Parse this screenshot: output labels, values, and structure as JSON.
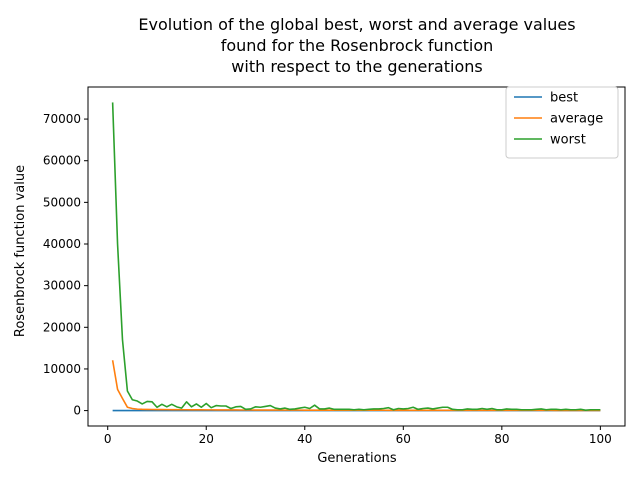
{
  "chart_data": {
    "type": "line",
    "title": [
      "Evolution of the global best, worst and average values",
      "found for the Rosenbrock function",
      "with respect to the generations"
    ],
    "xlabel": "Generations",
    "ylabel": "Rosenbrock function value",
    "xlim": [
      -4,
      105
    ],
    "ylim": [
      -3700,
      77700
    ],
    "xticks": [
      0,
      20,
      40,
      60,
      80,
      100
    ],
    "xtick_labels": [
      "0",
      "20",
      "40",
      "60",
      "80",
      "100"
    ],
    "yticks": [
      0,
      10000,
      20000,
      30000,
      40000,
      50000,
      60000,
      70000
    ],
    "ytick_labels": [
      "0",
      "10000",
      "20000",
      "30000",
      "40000",
      "50000",
      "60000",
      "70000"
    ],
    "grid": false,
    "legend_position": "top-right",
    "x": [
      1,
      2,
      3,
      4,
      5,
      6,
      7,
      8,
      9,
      10,
      11,
      12,
      13,
      14,
      15,
      16,
      17,
      18,
      19,
      20,
      21,
      22,
      23,
      24,
      25,
      26,
      27,
      28,
      29,
      30,
      31,
      32,
      33,
      34,
      35,
      36,
      37,
      38,
      39,
      40,
      41,
      42,
      43,
      44,
      45,
      46,
      47,
      48,
      49,
      50,
      51,
      52,
      53,
      54,
      55,
      56,
      57,
      58,
      59,
      60,
      61,
      62,
      63,
      64,
      65,
      66,
      67,
      68,
      69,
      70,
      71,
      72,
      73,
      74,
      75,
      76,
      77,
      78,
      79,
      80,
      81,
      82,
      83,
      84,
      85,
      86,
      87,
      88,
      89,
      90,
      91,
      92,
      93,
      94,
      95,
      96,
      97,
      98,
      99,
      100
    ],
    "series": [
      {
        "name": "best",
        "color": "#1f77b4",
        "values": [
          8,
          6,
          5,
          4,
          4,
          3,
          3,
          3,
          3,
          2,
          2,
          2,
          2,
          2,
          2,
          2,
          2,
          2,
          2,
          2,
          2,
          2,
          2,
          2,
          2,
          2,
          2,
          2,
          2,
          2,
          2,
          2,
          2,
          2,
          2,
          2,
          2,
          2,
          2,
          2,
          2,
          2,
          2,
          2,
          2,
          2,
          2,
          2,
          2,
          2,
          2,
          2,
          2,
          2,
          2,
          2,
          2,
          2,
          2,
          2,
          2,
          2,
          2,
          2,
          2,
          2,
          2,
          2,
          2,
          2,
          2,
          2,
          2,
          2,
          2,
          2,
          2,
          2,
          2,
          2,
          2,
          2,
          2,
          2,
          2,
          2,
          2,
          2,
          2,
          2,
          2,
          2,
          2,
          2,
          2,
          2,
          2,
          2,
          2,
          2
        ]
      },
      {
        "name": "average",
        "color": "#ff7f0e",
        "values": [
          12100,
          5100,
          2900,
          800,
          500,
          350,
          300,
          280,
          260,
          250,
          240,
          230,
          220,
          210,
          200,
          200,
          190,
          180,
          180,
          170,
          170,
          160,
          160,
          150,
          150,
          150,
          140,
          140,
          140,
          130,
          130,
          130,
          120,
          120,
          120,
          110,
          110,
          110,
          110,
          100,
          100,
          100,
          100,
          90,
          90,
          90,
          90,
          90,
          90,
          80,
          80,
          80,
          80,
          80,
          80,
          80,
          70,
          70,
          70,
          70,
          70,
          70,
          70,
          70,
          70,
          60,
          60,
          60,
          60,
          60,
          60,
          60,
          60,
          60,
          60,
          50,
          50,
          50,
          50,
          50,
          50,
          50,
          50,
          50,
          50,
          50,
          50,
          50,
          50,
          50,
          40,
          40,
          40,
          40,
          40,
          40,
          40,
          40,
          40,
          40
        ]
      },
      {
        "name": "worst",
        "color": "#2ca02c",
        "values": [
          74000,
          40000,
          17000,
          4700,
          2600,
          2300,
          1600,
          2200,
          2100,
          800,
          1500,
          900,
          1500,
          900,
          600,
          2100,
          900,
          1600,
          800,
          1700,
          700,
          1200,
          1100,
          1100,
          500,
          900,
          1000,
          300,
          400,
          900,
          800,
          1000,
          1200,
          600,
          400,
          600,
          300,
          400,
          600,
          800,
          500,
          1300,
          400,
          400,
          600,
          300,
          300,
          300,
          300,
          200,
          300,
          200,
          300,
          400,
          400,
          500,
          700,
          200,
          500,
          400,
          500,
          800,
          300,
          500,
          600,
          400,
          600,
          800,
          800,
          300,
          200,
          200,
          400,
          300,
          300,
          500,
          300,
          500,
          200,
          200,
          400,
          300,
          300,
          200,
          200,
          200,
          300,
          400,
          200,
          300,
          300,
          200,
          300,
          200,
          200,
          300,
          100,
          200,
          200,
          200
        ]
      }
    ]
  }
}
